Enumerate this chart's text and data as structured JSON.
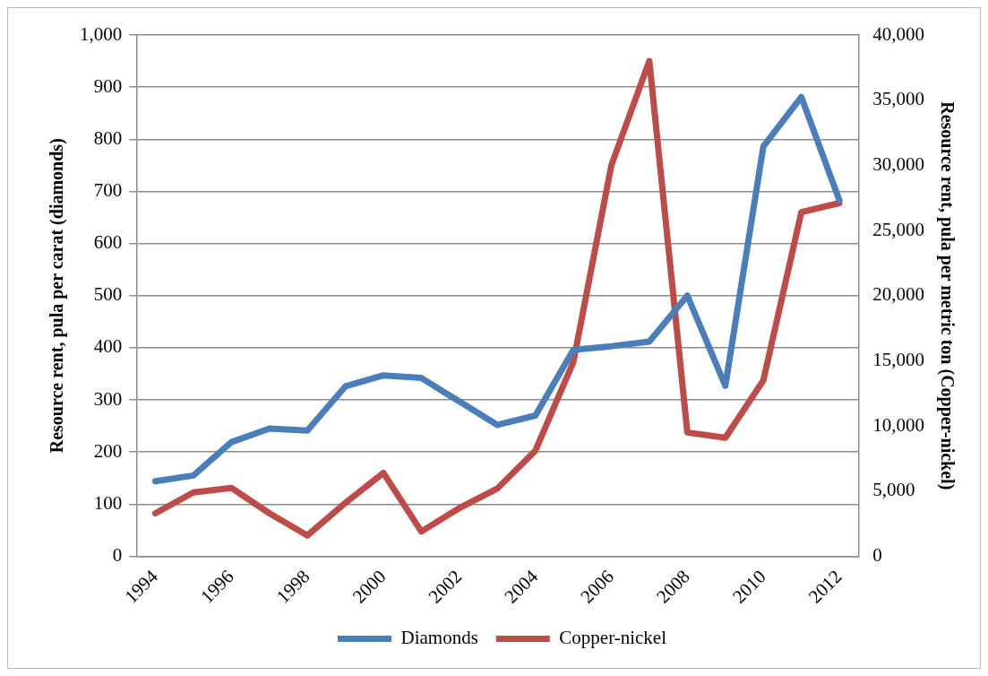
{
  "chart_data": {
    "type": "line",
    "ylabel": "Resource rent, pula per carat (diamonds)",
    "y2label": "Resource rent, pula per metric ton (Copper-nickel)",
    "categories": [
      "1994",
      null,
      "1996",
      null,
      "1998",
      null,
      "2000",
      null,
      "2002",
      null,
      "2004",
      null,
      "2006",
      null,
      "2008",
      null,
      "2010",
      null,
      "2012"
    ],
    "series": [
      {
        "name": "Diamonds",
        "color": "#4a7ebb",
        "values": [
          144,
          155,
          219,
          245,
          241,
          326,
          347,
          342,
          297,
          252,
          270,
          396,
          403,
          412,
          500,
          327,
          786,
          881,
          683
        ]
      },
      {
        "name": "Copper-nickel",
        "color": "#be4b48",
        "axis": "y2",
        "values": [
          3300,
          4900,
          5250,
          3300,
          1600,
          4100,
          6400,
          1900,
          3700,
          5200,
          8100,
          14900,
          30000,
          38000,
          9500,
          9100,
          13500,
          26400,
          27100
        ]
      }
    ],
    "ylim": [
      0,
      1000
    ],
    "yticks": [
      {
        "value": 0,
        "label": "0"
      },
      {
        "value": 100,
        "label": "100"
      },
      {
        "value": 200,
        "label": "200"
      },
      {
        "value": 300,
        "label": "300"
      },
      {
        "value": 400,
        "label": "400"
      },
      {
        "value": 500,
        "label": "500"
      },
      {
        "value": 600,
        "label": "600"
      },
      {
        "value": 700,
        "label": "700"
      },
      {
        "value": 800,
        "label": "800"
      },
      {
        "value": 900,
        "label": "900"
      },
      {
        "value": 1000,
        "label": "1,000"
      }
    ],
    "y2lim": [
      0,
      40000
    ],
    "y2ticks": [
      {
        "value": 0,
        "label": "0"
      },
      {
        "value": 5000,
        "label": "5,000"
      },
      {
        "value": 10000,
        "label": "10,000"
      },
      {
        "value": 15000,
        "label": "15,000"
      },
      {
        "value": 20000,
        "label": "20,000"
      },
      {
        "value": 25000,
        "label": "25,000"
      },
      {
        "value": 30000,
        "label": "30,000"
      },
      {
        "value": 35000,
        "label": "35,000"
      },
      {
        "value": 40000,
        "label": "40,000"
      }
    ],
    "grid": "y",
    "legend": "bottom",
    "marker": "none",
    "line_style": "solid"
  }
}
